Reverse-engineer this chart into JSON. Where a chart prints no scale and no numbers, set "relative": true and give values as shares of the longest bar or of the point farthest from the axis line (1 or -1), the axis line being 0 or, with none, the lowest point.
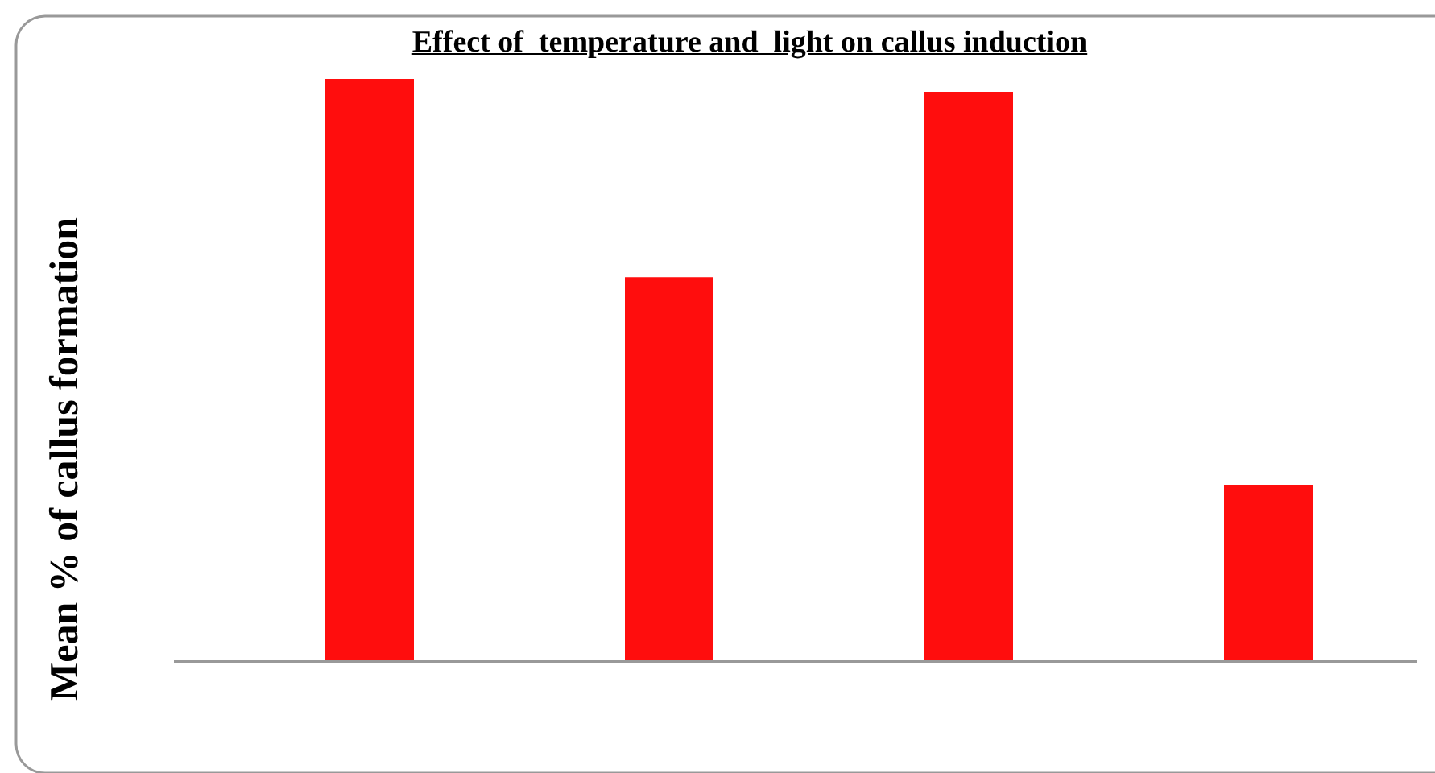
{
  "chart_data": {
    "type": "bar",
    "title": "Effect of  temperature and  light on callus induction",
    "ylabel": "Mean % of callus formation",
    "categories": [
      null,
      null,
      null,
      null
    ],
    "values": [
      1,
      0.66,
      0.978,
      0.304
    ],
    "color": "#ff0d0d",
    "relative": true
  }
}
